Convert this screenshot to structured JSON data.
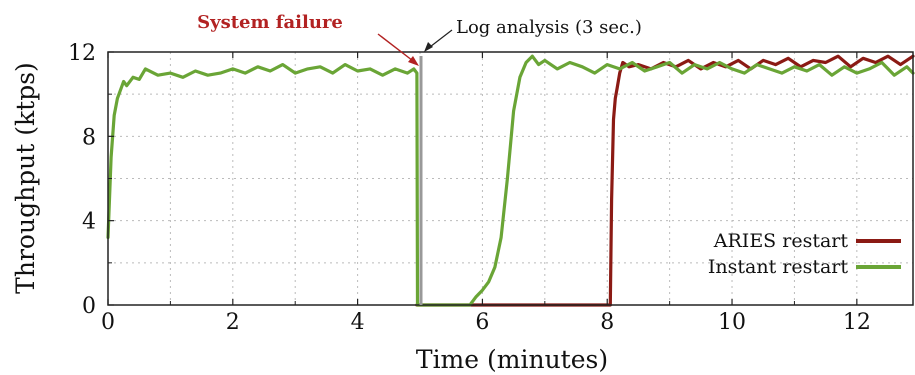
{
  "chart_data": {
    "type": "line",
    "xlabel": "Time (minutes)",
    "ylabel": "Throughput (ktps)",
    "xlim": [
      0,
      12.9
    ],
    "ylim": [
      0,
      12
    ],
    "xticks": [
      0,
      2,
      4,
      6,
      8,
      10,
      12
    ],
    "yticks": [
      0,
      4,
      8,
      12
    ],
    "grid": true,
    "legend_position": "bottom-right",
    "colors": {
      "aries": "#8b1a14",
      "instant": "#6aa536",
      "failure_text": "#b22222",
      "arrow_gray": "#999999"
    },
    "annotations": [
      {
        "text": "System failure",
        "x": 4.92,
        "y": 11.2,
        "color": "#b22222"
      },
      {
        "text": "Log analysis (3 sec.)",
        "x": 5.0,
        "y": 11.7
      }
    ],
    "series": [
      {
        "name": "ARIES restart",
        "color": "#8b1a14",
        "x": [
          4.95,
          4.96,
          8.05,
          8.07,
          8.1,
          8.13,
          8.16,
          8.2,
          8.25,
          8.35,
          8.5,
          8.7,
          8.9,
          9.1,
          9.3,
          9.5,
          9.7,
          9.9,
          10.1,
          10.3,
          10.5,
          10.7,
          10.9,
          11.1,
          11.3,
          11.5,
          11.7,
          11.9,
          12.1,
          12.3,
          12.5,
          12.7,
          12.9
        ],
        "y": [
          0,
          0,
          0,
          5.0,
          8.8,
          9.8,
          10.3,
          11.0,
          11.5,
          11.3,
          11.4,
          11.2,
          11.5,
          11.3,
          11.6,
          11.2,
          11.5,
          11.3,
          11.6,
          11.2,
          11.6,
          11.4,
          11.7,
          11.3,
          11.6,
          11.5,
          11.8,
          11.3,
          11.7,
          11.5,
          11.8,
          11.4,
          11.8
        ]
      },
      {
        "name": "Instant restart",
        "color": "#6aa536",
        "x": [
          0,
          0.05,
          0.1,
          0.15,
          0.2,
          0.25,
          0.3,
          0.4,
          0.5,
          0.6,
          0.8,
          1.0,
          1.2,
          1.4,
          1.6,
          1.8,
          2.0,
          2.2,
          2.4,
          2.6,
          2.8,
          3.0,
          3.2,
          3.4,
          3.6,
          3.8,
          4.0,
          4.2,
          4.4,
          4.6,
          4.8,
          4.9,
          4.95,
          4.96,
          5.5,
          5.8,
          5.9,
          6.0,
          6.1,
          6.2,
          6.3,
          6.4,
          6.5,
          6.6,
          6.7,
          6.8,
          6.9,
          7.0,
          7.2,
          7.4,
          7.6,
          7.8,
          8.0,
          8.2,
          8.4,
          8.6,
          8.8,
          9.0,
          9.2,
          9.4,
          9.6,
          9.8,
          10.0,
          10.2,
          10.4,
          10.6,
          10.8,
          11.0,
          11.2,
          11.4,
          11.6,
          11.8,
          12.0,
          12.2,
          12.4,
          12.6,
          12.8,
          12.9
        ],
        "y": [
          3.2,
          7.0,
          9.0,
          9.8,
          10.2,
          10.6,
          10.4,
          10.8,
          10.7,
          11.2,
          10.9,
          11.0,
          10.8,
          11.1,
          10.9,
          11.0,
          11.2,
          11.0,
          11.3,
          11.1,
          11.4,
          11.0,
          11.2,
          11.3,
          11.0,
          11.4,
          11.1,
          11.2,
          10.9,
          11.2,
          11.0,
          11.2,
          11.0,
          0,
          0,
          0,
          0.4,
          0.7,
          1.1,
          1.8,
          3.2,
          6.0,
          9.2,
          10.8,
          11.5,
          11.8,
          11.4,
          11.6,
          11.2,
          11.5,
          11.3,
          11.0,
          11.4,
          11.2,
          11.5,
          11.1,
          11.3,
          11.5,
          11.0,
          11.4,
          11.2,
          11.5,
          11.2,
          11.0,
          11.4,
          11.2,
          11.0,
          11.3,
          11.1,
          11.4,
          10.9,
          11.3,
          11.0,
          11.2,
          11.5,
          10.9,
          11.3,
          11.0
        ]
      }
    ]
  }
}
